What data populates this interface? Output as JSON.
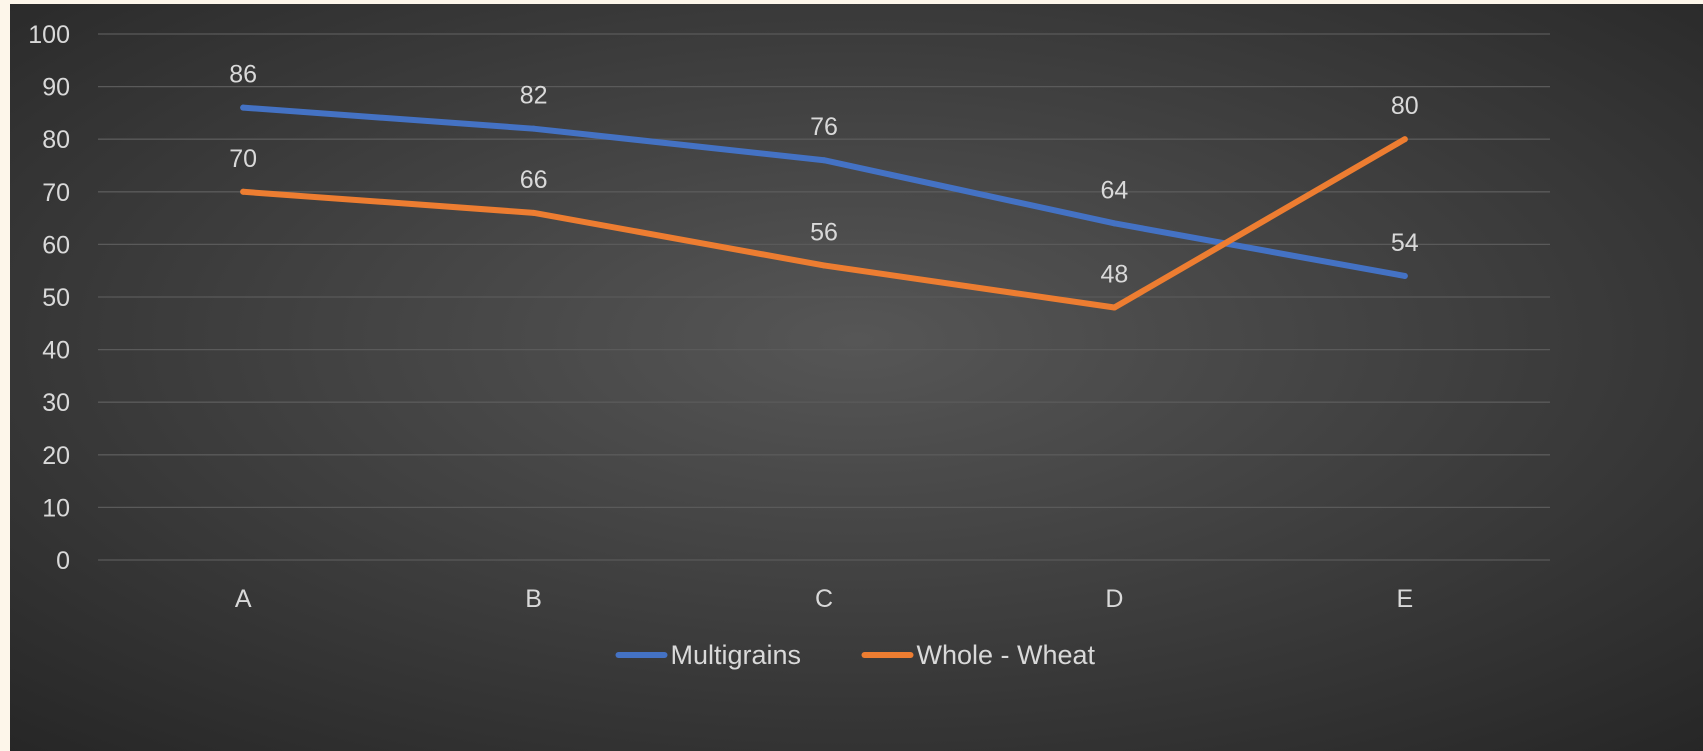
{
  "chart_data": {
    "type": "line",
    "categories": [
      "A",
      "B",
      "C",
      "D",
      "E"
    ],
    "series": [
      {
        "name": "Multigrains",
        "values": [
          86,
          82,
          76,
          64,
          54
        ],
        "color": "#4472c4"
      },
      {
        "name": "Whole - Wheat",
        "values": [
          70,
          66,
          56,
          48,
          80
        ],
        "color": "#ed7d31"
      }
    ],
    "ylim": [
      0,
      100
    ],
    "yticks": [
      0,
      10,
      20,
      30,
      40,
      50,
      60,
      70,
      80,
      90,
      100
    ],
    "grid": true,
    "data_labels": true,
    "legend_position": "bottom",
    "colors": {
      "background_center": "#565656",
      "background_edge": "#262626",
      "gridline": "#5a5a5a",
      "text": "#d9d9d9"
    }
  }
}
